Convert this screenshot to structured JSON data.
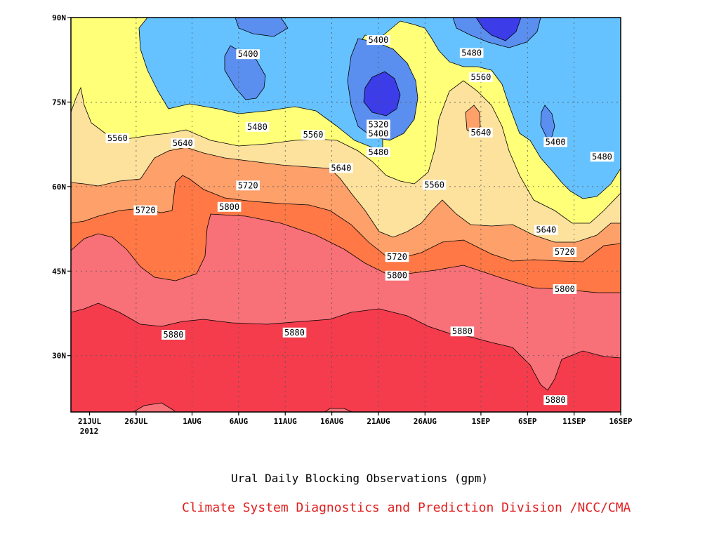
{
  "chart_data": {
    "type": "filled contour (time-latitude)",
    "x_axis": {
      "ticks": [
        "21JUL",
        "26JUL",
        "1AUG",
        "6AUG",
        "11AUG",
        "16AUG",
        "21AUG",
        "26AUG",
        "1SEP",
        "6SEP",
        "11SEP",
        "16SEP"
      ],
      "year_label": "2012"
    },
    "y_axis": {
      "ticks": [
        "30N",
        "45N",
        "60N",
        "75N",
        "90N"
      ],
      "range_deg": [
        20,
        90
      ]
    },
    "contour_levels_gpm": [
      5320,
      5400,
      5480,
      5560,
      5640,
      5720,
      5800,
      5880
    ],
    "contour_labels": [
      {
        "level": "5400",
        "date": "Aug 21",
        "lat": 86
      },
      {
        "level": "5400",
        "date": "Aug 7",
        "lat": 83.5
      },
      {
        "level": "5480",
        "date": "Aug 31",
        "lat": 83.7
      },
      {
        "level": "5560",
        "date": "Sep 1",
        "lat": 79.4
      },
      {
        "level": "5320",
        "date": "Aug 21",
        "lat": 71
      },
      {
        "level": "5480",
        "date": "Aug 8",
        "lat": 70.6
      },
      {
        "level": "5400",
        "date": "Aug 21",
        "lat": 69.4
      },
      {
        "level": "5640",
        "date": "Sep 1",
        "lat": 69.6
      },
      {
        "level": "5560",
        "date": "Jul 24",
        "lat": 68.6
      },
      {
        "level": "5560",
        "date": "Aug 14",
        "lat": 69.2
      },
      {
        "level": "5400",
        "date": "Sep 9",
        "lat": 67.9
      },
      {
        "level": "5640",
        "date": "Jul 31",
        "lat": 67.7
      },
      {
        "level": "5480",
        "date": "Aug 21",
        "lat": 66.1
      },
      {
        "level": "5480",
        "date": "Sep 14",
        "lat": 65.3
      },
      {
        "level": "5640",
        "date": "Aug 17",
        "lat": 63.3
      },
      {
        "level": "5720",
        "date": "Aug 7",
        "lat": 60.2
      },
      {
        "level": "5560",
        "date": "Aug 27",
        "lat": 60.3
      },
      {
        "level": "5720",
        "date": "Jul 27",
        "lat": 55.8
      },
      {
        "level": "5800",
        "date": "Aug 5",
        "lat": 56.4
      },
      {
        "level": "5640",
        "date": "Sep 8",
        "lat": 52.3
      },
      {
        "level": "5720",
        "date": "Aug 23",
        "lat": 47.5
      },
      {
        "level": "5720",
        "date": "Sep 10",
        "lat": 48.4
      },
      {
        "level": "5800",
        "date": "Aug 23",
        "lat": 44.2
      },
      {
        "level": "5800",
        "date": "Sep 10",
        "lat": 41.8
      },
      {
        "level": "5880",
        "date": "Jul 30",
        "lat": 33.7
      },
      {
        "level": "5880",
        "date": "Aug 12",
        "lat": 34.1
      },
      {
        "level": "5880",
        "date": "Aug 30",
        "lat": 34.3
      },
      {
        "level": "5880",
        "date": "Sep 9",
        "lat": 22.1
      }
    ],
    "colors": {
      "5320-5400": "#3c3ce8",
      "5400-5480": "#5a8ff0",
      "5480-5560": "#66c2ff",
      "5560-5640": "#ffff78",
      "5640-5720": "#fde29e",
      "5720-5800": "#fea06a",
      "5800-5880": "#ff7845",
      "5880-5960": "#f87078",
      ">5960": "#f43c4c"
    },
    "title": "Ural Daily Blocking Observations (gpm)",
    "grid": true
  },
  "caption": "Ural Daily Blocking Observations (gpm)",
  "credit": "Climate System Diagnostics and Prediction Division /NCC/CMA"
}
